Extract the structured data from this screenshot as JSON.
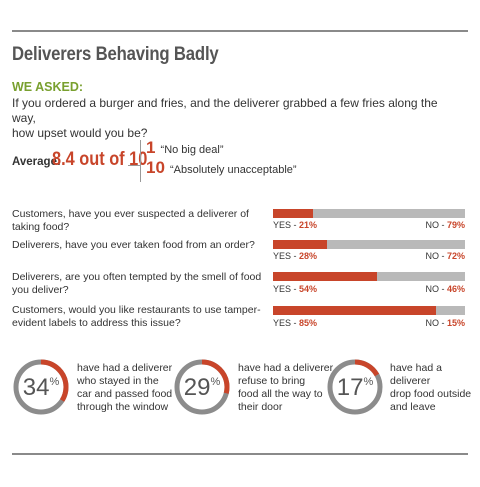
{
  "title": "Deliverers Behaving Badly",
  "asked": {
    "label": "WE ASKED:",
    "question_line1": "If you ordered a burger and fries, and the deliverer grabbed a few fries along the way,",
    "question_line2": "how upset would you be?"
  },
  "average": {
    "label": "Average:",
    "value": "8.4 out of 10",
    "scale_low_num": "1",
    "scale_low_text": "“No big deal”",
    "scale_high_num": "10",
    "scale_high_text": "“Absolutely unacceptable”"
  },
  "chart_data": {
    "type": "bar",
    "orientation": "horizontal-stacked",
    "series": [
      {
        "name": "YES",
        "values": [
          21,
          28,
          54,
          85
        ]
      },
      {
        "name": "NO",
        "values": [
          79,
          72,
          46,
          15
        ]
      }
    ],
    "rows": [
      {
        "question": "Customers, have you ever suspected a deliverer of taking food?",
        "yes_label": "YES - ",
        "yes_value": "21%",
        "no_label": "NO - ",
        "no_value": "79%",
        "yes": 21
      },
      {
        "question": "Deliverers, have you ever taken food from an order?",
        "yes_label": "YES - ",
        "yes_value": "28%",
        "no_label": "NO - ",
        "no_value": "72%",
        "yes": 28
      },
      {
        "question": "Deliverers, are you often tempted by the smell of food you deliver?",
        "yes_label": "YES - ",
        "yes_value": "54%",
        "no_label": "NO - ",
        "no_value": "46%",
        "yes": 54
      },
      {
        "question": "Customers, would you like restaurants to use tamper-evident labels to address this issue?",
        "yes_label": "YES - ",
        "yes_value": "85%",
        "no_label": "NO - ",
        "no_value": "15%",
        "yes": 85
      }
    ],
    "colors": {
      "yes": "#c8452a",
      "no": "#b9b9b9"
    }
  },
  "stats": [
    {
      "value": "34",
      "unit": "%",
      "percent": 34,
      "line1": "have had a deliverer",
      "line2": "who stayed in the",
      "line3": "car and passed food",
      "line4": "through the window"
    },
    {
      "value": "29",
      "unit": "%",
      "percent": 29,
      "line1": "have had a deliverer",
      "line2": "refuse to bring",
      "line3": "food all the way to",
      "line4": "their door"
    },
    {
      "value": "17",
      "unit": "%",
      "percent": 17,
      "line1": "have had a deliverer",
      "line2": "drop food outside",
      "line3": "and leave",
      "line4": ""
    }
  ],
  "colors": {
    "accent": "#c8452a",
    "green": "#79a02f",
    "ring_track": "#8c8c8c"
  }
}
